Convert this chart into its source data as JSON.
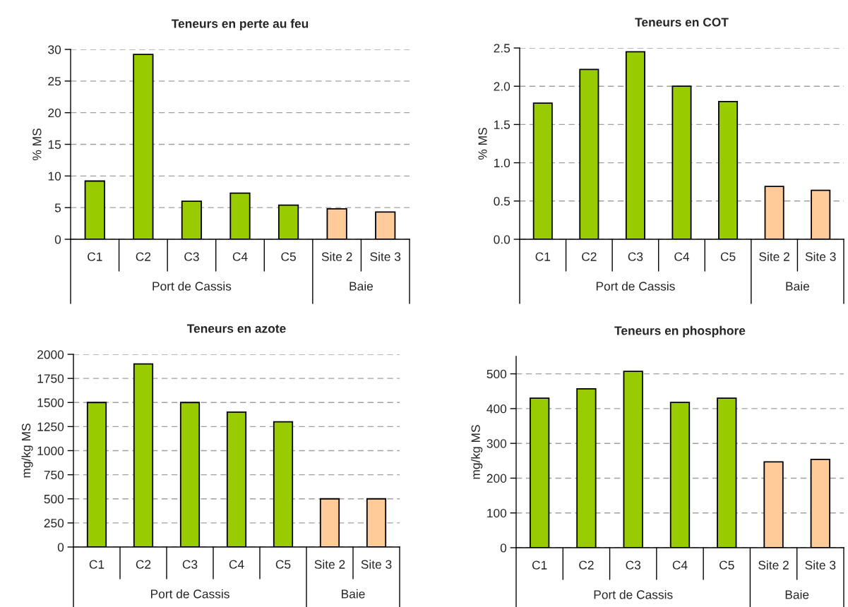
{
  "chart_data": [
    {
      "type": "bar",
      "title": "Teneurs en perte au feu",
      "ylabel": "% MS",
      "categories": [
        "C1",
        "C2",
        "C3",
        "C4",
        "C5",
        "Site 2",
        "Site 3"
      ],
      "values": [
        9.2,
        29.2,
        6.0,
        7.3,
        5.4,
        4.8,
        4.3
      ],
      "colors": [
        "#99cc00",
        "#99cc00",
        "#99cc00",
        "#99cc00",
        "#99cc00",
        "#ffcc99",
        "#ffcc99"
      ],
      "ylim": [
        0,
        30
      ],
      "yticks": [
        0,
        5,
        10,
        15,
        20,
        25,
        30
      ],
      "grid": "y",
      "annotations": [
        "Port de Cassis",
        "Baie"
      ]
    },
    {
      "type": "bar",
      "title": "Teneurs en COT",
      "ylabel": "% MS",
      "categories": [
        "C1",
        "C2",
        "C3",
        "C4",
        "C5",
        "Site 2",
        "Site 3"
      ],
      "values": [
        1.78,
        2.22,
        2.45,
        2.0,
        1.8,
        0.69,
        0.64
      ],
      "colors": [
        "#99cc00",
        "#99cc00",
        "#99cc00",
        "#99cc00",
        "#99cc00",
        "#ffcc99",
        "#ffcc99"
      ],
      "ylim": [
        0,
        2.5
      ],
      "yticks": [
        {
          "value": 0,
          "label": "0.0"
        },
        0.5,
        {
          "value": 1,
          "label": "1.0"
        },
        1.5,
        {
          "value": 2,
          "label": "2.0"
        },
        2.5
      ],
      "grid": "y",
      "annotations": [
        "Port de Cassis",
        "Baie"
      ]
    },
    {
      "type": "bar",
      "title": "Teneurs en azote",
      "ylabel": "mg/kg MS",
      "categories": [
        "C1",
        "C2",
        "C3",
        "C4",
        "C5",
        "Site 2",
        "Site 3"
      ],
      "values": [
        1500,
        1900,
        1500,
        1400,
        1300,
        500,
        500
      ],
      "colors": [
        "#99cc00",
        "#99cc00",
        "#99cc00",
        "#99cc00",
        "#99cc00",
        "#ffcc99",
        "#ffcc99"
      ],
      "ylim": [
        0,
        2000
      ],
      "yticks": [
        0,
        250,
        500,
        750,
        1000,
        1250,
        1500,
        1750,
        2000
      ],
      "grid": "y",
      "annotations": [
        "Port de Cassis",
        "Baie"
      ]
    },
    {
      "type": "bar",
      "title": "Teneurs en phosphore",
      "ylabel": "mg/kg MS",
      "categories": [
        "C1",
        "C2",
        "C3",
        "C4",
        "C5",
        "Site 2",
        "Site 3"
      ],
      "values": [
        430,
        457,
        507,
        418,
        430,
        247,
        254
      ],
      "colors": [
        "#99cc00",
        "#99cc00",
        "#99cc00",
        "#99cc00",
        "#99cc00",
        "#ffcc99",
        "#ffcc99"
      ],
      "ylim": [
        0,
        550
      ],
      "yticks": [
        0,
        100,
        200,
        300,
        400,
        500
      ],
      "grid": "y",
      "annotations": [
        "Port de Cassis",
        "Baie"
      ]
    }
  ]
}
